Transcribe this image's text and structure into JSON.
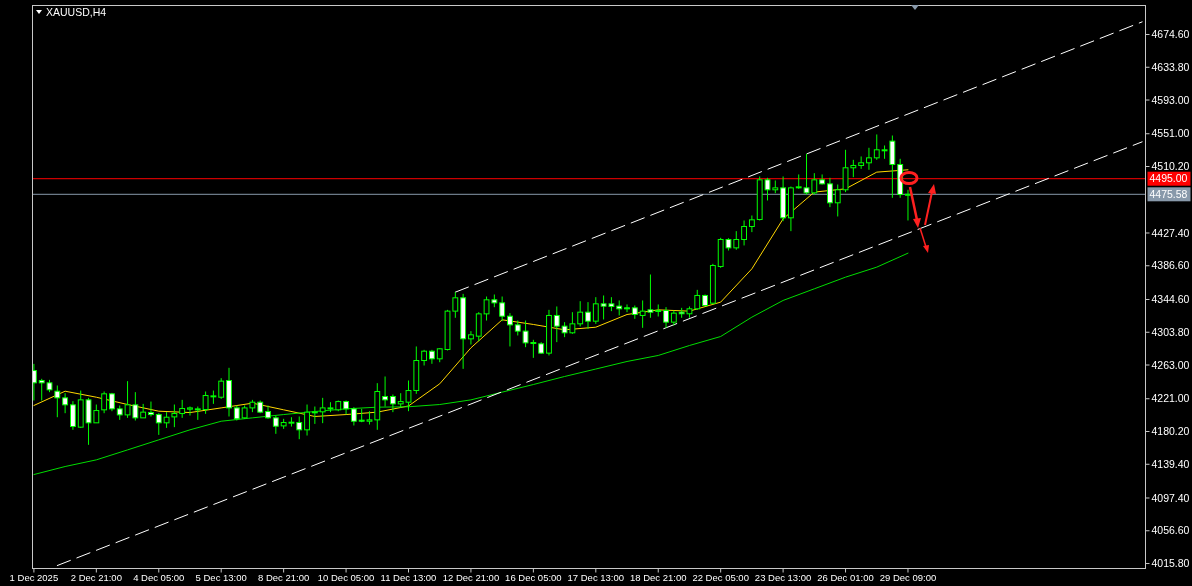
{
  "chart_data": {
    "type": "candlestick",
    "title": "XAUUSD,H4",
    "color": "#00ff00",
    "categories": [
      "1 Dec 2025",
      null,
      null,
      null,
      null,
      null,
      null,
      null,
      "2 Dec 21:00",
      null,
      null,
      null,
      null,
      null,
      null,
      null,
      "4 Dec 05:00",
      null,
      null,
      null,
      null,
      null,
      null,
      null,
      "5 Dec 13:00",
      null,
      null,
      null,
      null,
      null,
      null,
      null,
      "8 Dec 21:00",
      null,
      null,
      null,
      null,
      null,
      null,
      null,
      "10 Dec 05:00",
      null,
      null,
      null,
      null,
      null,
      null,
      null,
      "11 Dec 13:00",
      null,
      null,
      null,
      null,
      null,
      null,
      null,
      "12 Dec 21:00",
      null,
      null,
      null,
      null,
      null,
      null,
      null,
      "16 Dec 05:00",
      null,
      null,
      null,
      null,
      null,
      null,
      null,
      "17 Dec 13:00",
      null,
      null,
      null,
      null,
      null,
      null,
      null,
      "18 Dec 21:00",
      null,
      null,
      null,
      null,
      null,
      null,
      null,
      "22 Dec 05:00",
      null,
      null,
      null,
      null,
      null,
      null,
      null,
      "23 Dec 13:00",
      null,
      null,
      null,
      null,
      null,
      null,
      null,
      "26 Dec 01:00",
      null,
      null,
      null,
      null,
      null,
      null,
      null,
      "29 Dec 09:00",
      null,
      null,
      null,
      null,
      null,
      null,
      null,
      null,
      null,
      null,
      null,
      null,
      null,
      null,
      null,
      null,
      null,
      null,
      null,
      null,
      null,
      null,
      null,
      null,
      null,
      null,
      null,
      null,
      null,
      null
    ],
    "ohlc": [
      [
        4256.1,
        4264.4,
        4218.8,
        4240.8
      ],
      [
        4243.7,
        4245.8,
        4218.8,
        4240.8
      ],
      [
        4240.8,
        4244.5,
        4229.2,
        4232.1
      ],
      [
        4230.4,
        4237.5,
        4198.0,
        4222.1
      ],
      [
        4222.1,
        4227.9,
        4203.0,
        4213.4
      ],
      [
        4213.4,
        4218.0,
        4182.3,
        4186.4
      ],
      [
        4185.6,
        4231.2,
        4184.7,
        4219.6
      ],
      [
        4219.6,
        4222.1,
        4163.6,
        4191.0
      ],
      [
        4191.0,
        4213.8,
        4191.0,
        4206.3
      ],
      [
        4207.2,
        4230.0,
        4203.0,
        4227.1
      ],
      [
        4227.1,
        4228.3,
        4205.5,
        4208.4
      ],
      [
        4208.4,
        4212.6,
        4194.7,
        4200.9
      ],
      [
        4200.9,
        4242.9,
        4197.2,
        4213.4
      ],
      [
        4213.4,
        4229.2,
        4193.9,
        4197.2
      ],
      [
        4197.2,
        4214.6,
        4197.2,
        4204.3
      ],
      [
        4203.8,
        4217.5,
        4198.9,
        4201.3
      ],
      [
        4201.3,
        4203.0,
        4176.0,
        4191.0
      ],
      [
        4191.0,
        4204.3,
        4184.7,
        4198.0
      ],
      [
        4198.4,
        4213.8,
        4185.6,
        4202.6
      ],
      [
        4202.6,
        4219.6,
        4197.2,
        4208.8
      ],
      [
        4208.0,
        4211.3,
        4200.1,
        4209.6
      ],
      [
        4208.0,
        4211.3,
        4194.7,
        4208.4
      ],
      [
        4207.6,
        4230.0,
        4202.2,
        4225.0
      ],
      [
        4223.8,
        4231.2,
        4214.6,
        4224.6
      ],
      [
        4222.9,
        4246.6,
        4220.9,
        4242.9
      ],
      [
        4243.7,
        4259.5,
        4198.9,
        4209.6
      ],
      [
        4209.6,
        4212.6,
        4193.9,
        4196.0
      ],
      [
        4197.2,
        4212.6,
        4196.0,
        4209.6
      ],
      [
        4209.6,
        4219.6,
        4204.3,
        4216.7
      ],
      [
        4216.7,
        4218.8,
        4203.0,
        4204.3
      ],
      [
        4205.1,
        4212.6,
        4196.0,
        4197.2
      ],
      [
        4197.2,
        4200.1,
        4177.3,
        4186.8
      ],
      [
        4187.2,
        4196.0,
        4183.5,
        4191.4
      ],
      [
        4191.4,
        4198.0,
        4186.4,
        4191.8
      ],
      [
        4191.4,
        4198.9,
        4170.6,
        4182.3
      ],
      [
        4182.3,
        4213.8,
        4175.2,
        4204.3
      ],
      [
        4203.8,
        4211.3,
        4189.7,
        4204.7
      ],
      [
        4204.7,
        4222.1,
        4190.6,
        4209.6
      ],
      [
        4209.2,
        4216.7,
        4204.3,
        4209.6
      ],
      [
        4207.2,
        4218.8,
        4205.5,
        4217.5
      ],
      [
        4217.5,
        4218.8,
        4201.3,
        4208.4
      ],
      [
        4208.4,
        4210.5,
        4187.7,
        4193.0
      ],
      [
        4194.3,
        4208.4,
        4191.8,
        4193.5
      ],
      [
        4193.0,
        4205.5,
        4188.9,
        4194.7
      ],
      [
        4194.7,
        4240.4,
        4182.3,
        4230.0
      ],
      [
        4223.8,
        4248.7,
        4211.3,
        4219.6
      ],
      [
        4223.8,
        4226.3,
        4204.3,
        4214.6
      ],
      [
        4214.6,
        4227.9,
        4209.6,
        4217.5
      ],
      [
        4216.7,
        4243.7,
        4205.5,
        4231.2
      ],
      [
        4231.3,
        4286.1,
        4227.1,
        4268.6
      ],
      [
        4268.6,
        4281.9,
        4262.4,
        4280.2
      ],
      [
        4280.2,
        4281.9,
        4264.5,
        4270.7
      ],
      [
        4270.7,
        4284.0,
        4266.5,
        4283.2
      ],
      [
        4282.3,
        4331.7,
        4281.1,
        4330.1
      ],
      [
        4330.1,
        4353.7,
        4321.8,
        4346.7
      ],
      [
        4346.7,
        4351.6,
        4258.2,
        4295.6
      ],
      [
        4295.6,
        4305.2,
        4288.5,
        4300.6
      ],
      [
        4298.9,
        4328.8,
        4292.7,
        4326.7
      ],
      [
        4326.7,
        4348.3,
        4318.4,
        4344.2
      ],
      [
        4344.2,
        4350.8,
        4335.0,
        4340.4
      ],
      [
        4340.4,
        4348.3,
        4317.6,
        4323.8
      ],
      [
        4323.8,
        4327.6,
        4286.1,
        4313.0
      ],
      [
        4313.0,
        4318.4,
        4299.8,
        4305.2
      ],
      [
        4305.2,
        4318.4,
        4285.2,
        4290.6
      ],
      [
        4291.0,
        4294.4,
        4271.9,
        4290.2
      ],
      [
        4289.4,
        4291.5,
        4276.9,
        4277.8
      ],
      [
        4277.8,
        4331.7,
        4274.9,
        4324.7
      ],
      [
        4324.7,
        4335.9,
        4291.5,
        4311.4
      ],
      [
        4311.4,
        4316.4,
        4297.7,
        4303.1
      ],
      [
        4303.1,
        4328.8,
        4301.8,
        4314.3
      ],
      [
        4314.3,
        4342.5,
        4311.0,
        4328.8
      ],
      [
        4328.8,
        4341.3,
        4308.1,
        4317.6
      ],
      [
        4317.6,
        4347.5,
        4314.3,
        4339.2
      ],
      [
        4339.2,
        4349.6,
        4319.7,
        4336.3
      ],
      [
        4339.2,
        4347.5,
        4330.1,
        4335.9
      ],
      [
        4336.3,
        4343.4,
        4324.7,
        4333.0
      ],
      [
        4334.2,
        4338.4,
        4328.8,
        4333.8
      ],
      [
        4334.2,
        4337.1,
        4320.5,
        4325.9
      ],
      [
        4324.7,
        4343.4,
        4309.3,
        4330.1
      ],
      [
        4331.7,
        4375.7,
        4321.8,
        4328.8
      ],
      [
        4330.9,
        4338.4,
        4323.4,
        4330.5
      ],
      [
        4330.9,
        4335.1,
        4309.3,
        4316.4
      ],
      [
        4316.4,
        4330.9,
        4312.2,
        4327.6
      ],
      [
        4328.8,
        4334.2,
        4321.8,
        4326.8
      ],
      [
        4326.8,
        4335.9,
        4321.8,
        4333.0
      ],
      [
        4333.0,
        4356.6,
        4331.7,
        4349.6
      ],
      [
        4349.6,
        4350.8,
        4335.9,
        4337.1
      ],
      [
        4340.0,
        4389.0,
        4338.4,
        4386.9
      ],
      [
        4385.7,
        4421.4,
        4384.0,
        4419.3
      ],
      [
        4419.3,
        4421.0,
        4405.6,
        4408.9
      ],
      [
        4408.9,
        4429.7,
        4406.5,
        4419.3
      ],
      [
        4419.3,
        4443.0,
        4411.9,
        4435.5
      ],
      [
        4435.5,
        4449.2,
        4428.5,
        4443.8
      ],
      [
        4444.2,
        4497.8,
        4443.0,
        4493.6
      ],
      [
        4493.6,
        4496.1,
        4467.9,
        4481.2
      ],
      [
        4481.2,
        4492.8,
        4477.0,
        4483.6
      ],
      [
        4483.6,
        4497.8,
        4442.1,
        4446.3
      ],
      [
        4446.3,
        4485.3,
        4429.7,
        4483.6
      ],
      [
        4484.1,
        4500.3,
        4482.4,
        4484.9
      ],
      [
        4483.6,
        4526.0,
        4475.3,
        4477.4
      ],
      [
        4477.4,
        4501.9,
        4475.3,
        4493.6
      ],
      [
        4493.6,
        4500.3,
        4487.8,
        4488.6
      ],
      [
        4488.6,
        4496.1,
        4459.6,
        4465.0
      ],
      [
        4465.0,
        4487.8,
        4448.0,
        4481.2
      ],
      [
        4481.2,
        4531.0,
        4478.3,
        4508.6
      ],
      [
        4508.6,
        4518.5,
        4496.9,
        4511.5
      ],
      [
        4511.5,
        4522.7,
        4507.3,
        4514.8
      ],
      [
        4514.8,
        4533.5,
        4506.1,
        4521.0
      ],
      [
        4521.0,
        4550.1,
        4518.5,
        4531.0
      ],
      [
        4530.6,
        4536.4,
        4519.8,
        4531.0
      ],
      [
        4541.8,
        4548.8,
        4471.2,
        4512.7
      ],
      [
        4512.7,
        4519.8,
        4471.2,
        4475.3
      ],
      [
        4475.3,
        4481.2,
        4443.0,
        4475.6
      ],
      null,
      null,
      null,
      null,
      null,
      null,
      null,
      null,
      null,
      null,
      null,
      null,
      null,
      null,
      null,
      null,
      null,
      null,
      null,
      null,
      null,
      null,
      null,
      null,
      null,
      null,
      null,
      null,
      null,
      null
    ],
    "series": [
      {
        "type": "line",
        "color": "#ffd700",
        "values": [
          4212.6,
          null,
          null,
          null,
          4230.4,
          null,
          null,
          null,
          4222.9,
          null,
          null,
          null,
          4213.8,
          null,
          null,
          null,
          4205.5,
          null,
          null,
          null,
          4203.8,
          null,
          null,
          null,
          4209.6,
          null,
          null,
          null,
          4215.5,
          null,
          null,
          null,
          4207.2,
          null,
          null,
          null,
          4198.9,
          null,
          null,
          null,
          4201.3,
          null,
          null,
          null,
          4204.3,
          null,
          null,
          null,
          4212.0,
          null,
          null,
          null,
          4239.6,
          null,
          null,
          null,
          4284.4,
          null,
          null,
          null,
          4319.3,
          null,
          null,
          null,
          4313.5,
          null,
          null,
          null,
          4306.8,
          null,
          null,
          null,
          4310.1,
          null,
          null,
          null,
          4325.9,
          null,
          null,
          null,
          4331.7,
          null,
          null,
          null,
          4330.1,
          null,
          null,
          null,
          4341.3,
          null,
          null,
          null,
          4382.8,
          null,
          null,
          null,
          4445.0,
          null,
          null,
          null,
          4478.3,
          null,
          null,
          null,
          4482.4,
          null,
          null,
          null,
          4503.2,
          null,
          null,
          null,
          4506.1,
          null,
          null,
          null,
          null,
          null,
          null,
          null,
          null,
          null,
          null,
          null,
          null,
          null,
          null,
          null,
          null,
          null,
          null,
          null,
          null,
          null,
          null,
          null,
          null,
          null,
          null,
          null,
          null,
          null,
          null
        ]
      },
      {
        "type": "line",
        "color": "#00dd00",
        "values": [
          4126.6,
          null,
          null,
          null,
          4136.6,
          null,
          null,
          null,
          4144.9,
          null,
          null,
          null,
          4157.3,
          null,
          null,
          null,
          4169.8,
          null,
          null,
          null,
          4182.3,
          null,
          null,
          null,
          4193.0,
          null,
          null,
          null,
          4197.2,
          null,
          null,
          null,
          4201.3,
          null,
          null,
          null,
          4205.1,
          null,
          null,
          null,
          4208.4,
          null,
          null,
          null,
          4210.5,
          null,
          null,
          null,
          4211.0,
          null,
          null,
          null,
          4213.8,
          null,
          null,
          null,
          4219.6,
          null,
          null,
          null,
          4229.2,
          null,
          null,
          null,
          4238.7,
          null,
          null,
          null,
          4248.7,
          null,
          null,
          null,
          4258.0,
          null,
          null,
          null,
          4267.4,
          null,
          null,
          null,
          4274.9,
          null,
          null,
          null,
          4287.3,
          null,
          null,
          null,
          4298.5,
          null,
          null,
          null,
          4322.6,
          null,
          null,
          null,
          4343.4,
          null,
          null,
          null,
          4357.9,
          null,
          null,
          null,
          4372.4,
          null,
          null,
          null,
          4384.9,
          null,
          null,
          null,
          4402.3,
          null,
          null,
          null,
          null,
          null,
          null,
          null,
          null,
          null,
          null,
          null,
          null,
          null,
          null,
          null,
          null,
          null,
          null,
          null,
          null,
          null,
          null,
          null,
          null,
          null,
          null,
          null,
          null,
          null,
          null
        ]
      },
      {
        "type": "line",
        "color": "#ffffff",
        "line_style": "dashed",
        "values": [
          null,
          null,
          null,
          null,
          null,
          null,
          null,
          null,
          null,
          null,
          null,
          null,
          null,
          null,
          null,
          null,
          null,
          null,
          null,
          null,
          null,
          null,
          null,
          null,
          null,
          null,
          null,
          null,
          null,
          null,
          null,
          null,
          null,
          null,
          null,
          null,
          null,
          null,
          null,
          null,
          null,
          null,
          null,
          null,
          null,
          null,
          null,
          null,
          null,
          null,
          null,
          null,
          null,
          null,
          4353.7,
          null,
          null,
          null,
          null,
          null,
          null,
          null,
          null,
          null,
          null,
          null,
          null,
          null,
          null,
          null,
          null,
          null,
          null,
          null,
          null,
          null,
          null,
          null,
          null,
          null,
          null,
          null,
          null,
          null,
          null,
          null,
          null,
          null,
          null,
          null,
          null,
          null,
          null,
          null,
          null,
          null,
          null,
          null,
          null,
          null,
          null,
          null,
          null,
          null,
          null,
          null,
          null,
          null,
          null,
          null,
          null,
          null,
          null,
          null,
          null,
          null,
          null,
          null,
          null,
          null,
          null,
          null,
          null,
          null,
          null,
          null,
          null,
          null,
          null,
          null,
          null,
          null,
          null,
          null,
          null,
          null,
          null,
          null,
          null,
          null,
          null,
          null,
          4690.3
        ]
      },
      {
        "type": "line",
        "color": "#ffffff",
        "line_style": "dashed",
        "values": [
          null,
          null,
          null,
          4013.3,
          null,
          null,
          null,
          null,
          null,
          null,
          null,
          null,
          null,
          null,
          null,
          null,
          null,
          null,
          null,
          null,
          null,
          null,
          null,
          null,
          null,
          null,
          null,
          null,
          null,
          null,
          null,
          null,
          null,
          null,
          null,
          null,
          null,
          null,
          null,
          null,
          null,
          null,
          null,
          null,
          null,
          null,
          null,
          null,
          null,
          null,
          null,
          null,
          null,
          null,
          null,
          null,
          null,
          null,
          null,
          null,
          null,
          null,
          null,
          null,
          null,
          null,
          null,
          null,
          null,
          null,
          null,
          null,
          null,
          null,
          null,
          null,
          null,
          null,
          null,
          null,
          null,
          null,
          null,
          null,
          null,
          null,
          null,
          null,
          null,
          null,
          null,
          null,
          null,
          null,
          null,
          null,
          null,
          null,
          null,
          null,
          null,
          null,
          null,
          null,
          null,
          null,
          null,
          null,
          null,
          null,
          null,
          null,
          null,
          null,
          null,
          null,
          null,
          null,
          null,
          null,
          null,
          null,
          null,
          null,
          null,
          null,
          null,
          null,
          null,
          null,
          null,
          null,
          null,
          null,
          null,
          null,
          null,
          null,
          null,
          null,
          null,
          null,
          4540.9
        ]
      }
    ],
    "ylim": [
      4009.6,
      4710.7
    ],
    "yticks": [
      {
        "value": 4674.6,
        "label": "4674.60"
      },
      {
        "value": 4633.8,
        "label": "4633.80"
      },
      {
        "value": 4593,
        "label": "4593.00"
      },
      {
        "value": 4551,
        "label": "4551.00"
      },
      {
        "value": 4510.2,
        "label": "4510.20"
      },
      {
        "value": 4427.4,
        "label": "4427.40"
      },
      {
        "value": 4386.6,
        "label": "4386.60"
      },
      {
        "value": 4344.6,
        "label": "4344.60"
      },
      {
        "value": 4303.8,
        "label": "4303.80"
      },
      {
        "value": 4263,
        "label": "4263.00"
      },
      {
        "value": 4221,
        "label": "4221.00"
      },
      {
        "value": 4180.2,
        "label": "4180.20"
      },
      {
        "value": 4139.4,
        "label": "4139.40"
      },
      {
        "value": 4097.4,
        "label": "4097.40"
      },
      {
        "value": 4056.6,
        "label": "4056.60"
      },
      {
        "value": 4015.8,
        "label": "4015.80"
      }
    ],
    "ref_lines": [
      {
        "axis": "y",
        "value": 4495.0,
        "label": "4495.00",
        "color": "#ff0000"
      },
      {
        "axis": "y",
        "value": 4475.58,
        "label": "4475.58",
        "color": "#8899aa"
      }
    ]
  }
}
